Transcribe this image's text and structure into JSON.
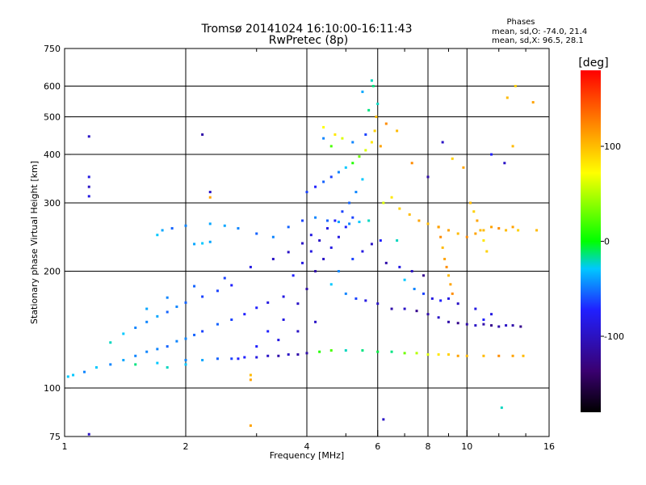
{
  "chart_data": {
    "type": "scatter",
    "title": "Tromsø 20141024 16:10:00-16:11:43",
    "subtitle": "RwPretec (8p)",
    "xlabel": "Frequency [MHz]",
    "ylabel": "Stationary phase Virtual Height [km]",
    "x_scale": "log",
    "y_scale": "log",
    "xlim": [
      1,
      16
    ],
    "ylim": [
      75,
      750
    ],
    "x_ticks": [
      1,
      2,
      4,
      6,
      8,
      10,
      16
    ],
    "x_tick_labels": [
      "1",
      "2",
      "4",
      "6",
      "8",
      "10",
      "16"
    ],
    "y_ticks": [
      75,
      100,
      200,
      300,
      400,
      500,
      600,
      750
    ],
    "y_tick_labels": [
      "75",
      "100",
      "200",
      "300",
      "400",
      "500",
      "600",
      "750"
    ],
    "grid": true,
    "stats": {
      "title": "Phases",
      "o_line": "mean, sd,O: -74.0, 21.4",
      "x_line": "mean, sd,X:  96.5, 28.1"
    },
    "colorbar": {
      "label": "[deg]",
      "range": [
        -180,
        180
      ],
      "ticks": [
        100,
        0,
        -100
      ],
      "tick_labels": [
        "100",
        "0",
        "-100"
      ],
      "colors": [
        "#000000",
        "#3a0070",
        "#2020ff",
        "#00c8ff",
        "#00ff00",
        "#ffff00",
        "#ff8000",
        "#ff0000"
      ]
    },
    "series": [
      {
        "points": [
          [
            1.02,
            107,
            -40
          ],
          [
            1.05,
            108,
            -40
          ],
          [
            1.12,
            110,
            -60
          ],
          [
            1.2,
            113,
            -40
          ],
          [
            1.3,
            115,
            -60
          ],
          [
            1.4,
            118,
            -50
          ],
          [
            1.5,
            121,
            -60
          ],
          [
            1.6,
            124,
            -60
          ],
          [
            1.7,
            126,
            -60
          ],
          [
            1.8,
            128,
            -70
          ],
          [
            1.9,
            132,
            -60
          ],
          [
            2.0,
            134,
            -60
          ],
          [
            2.1,
            137,
            -70
          ],
          [
            2.2,
            140,
            -80
          ],
          [
            2.4,
            146,
            -70
          ],
          [
            2.6,
            150,
            -80
          ],
          [
            2.8,
            155,
            -90
          ],
          [
            3.0,
            161,
            -90
          ],
          [
            3.2,
            166,
            -100
          ],
          [
            3.5,
            172,
            -100
          ],
          [
            1.4,
            138,
            -40
          ],
          [
            1.5,
            143,
            -60
          ],
          [
            1.6,
            148,
            -60
          ],
          [
            1.7,
            153,
            -50
          ],
          [
            1.8,
            157,
            -70
          ],
          [
            1.9,
            162,
            -60
          ],
          [
            2.0,
            166,
            -70
          ],
          [
            2.2,
            172,
            -80
          ],
          [
            2.4,
            178,
            -80
          ],
          [
            2.6,
            184,
            -90
          ],
          [
            1.3,
            131,
            -30
          ],
          [
            1.6,
            160,
            -50
          ],
          [
            1.8,
            171,
            -60
          ],
          [
            2.1,
            183,
            -70
          ],
          [
            2.5,
            192,
            -80
          ],
          [
            2.9,
            205,
            -100
          ],
          [
            3.3,
            215,
            -110
          ],
          [
            3.6,
            224,
            -110
          ],
          [
            3.9,
            236,
            -110
          ],
          [
            4.1,
            248,
            -100
          ],
          [
            2.8,
            120,
            -90
          ],
          [
            3.0,
            120,
            -100
          ],
          [
            3.2,
            121,
            -110
          ],
          [
            3.4,
            121,
            -120
          ],
          [
            3.6,
            122,
            -110
          ],
          [
            3.8,
            122,
            -120
          ],
          [
            4.0,
            123,
            -120
          ],
          [
            4.3,
            124,
            10
          ],
          [
            4.6,
            125,
            20
          ],
          [
            5.0,
            125,
            -30
          ],
          [
            5.5,
            125,
            -20
          ],
          [
            6.0,
            124,
            -10
          ],
          [
            6.5,
            124,
            -20
          ],
          [
            7.0,
            123,
            30
          ],
          [
            7.5,
            123,
            50
          ],
          [
            8.0,
            122,
            60
          ],
          [
            8.5,
            122,
            80
          ],
          [
            9.0,
            122,
            90
          ],
          [
            9.5,
            121,
            110
          ],
          [
            10.0,
            121,
            100
          ],
          [
            11.0,
            121,
            100
          ],
          [
            12.0,
            121,
            120
          ],
          [
            13.0,
            121,
            110
          ],
          [
            13.8,
            121,
            100
          ],
          [
            2.0,
            118,
            -60
          ],
          [
            2.2,
            118,
            -50
          ],
          [
            2.4,
            119,
            -70
          ],
          [
            2.6,
            119,
            -80
          ],
          [
            2.7,
            119,
            -90
          ],
          [
            1.7,
            116,
            -40
          ],
          [
            3.2,
            140,
            -90
          ],
          [
            3.5,
            150,
            -100
          ],
          [
            3.8,
            165,
            -110
          ],
          [
            4.0,
            180,
            -120
          ],
          [
            4.2,
            200,
            -120
          ],
          [
            4.4,
            215,
            -110
          ],
          [
            4.6,
            230,
            -100
          ],
          [
            4.8,
            245,
            -100
          ],
          [
            5.0,
            260,
            -90
          ],
          [
            5.2,
            275,
            -80
          ],
          [
            3.7,
            195,
            -90
          ],
          [
            3.9,
            210,
            -100
          ],
          [
            4.1,
            225,
            -100
          ],
          [
            4.3,
            240,
            -110
          ],
          [
            4.5,
            258,
            -100
          ],
          [
            4.7,
            270,
            -90
          ],
          [
            4.9,
            285,
            -80
          ],
          [
            5.1,
            300,
            -70
          ],
          [
            5.3,
            320,
            -60
          ],
          [
            5.5,
            345,
            -40
          ],
          [
            3.6,
            260,
            -70
          ],
          [
            3.9,
            270,
            -80
          ],
          [
            4.2,
            275,
            -60
          ],
          [
            4.5,
            270,
            -70
          ],
          [
            4.8,
            268,
            -50
          ],
          [
            5.1,
            265,
            -60
          ],
          [
            5.4,
            268,
            -40
          ],
          [
            5.7,
            270,
            -30
          ],
          [
            3.3,
            245,
            -60
          ],
          [
            3.0,
            250,
            -70
          ],
          [
            2.7,
            258,
            -60
          ],
          [
            2.5,
            262,
            -50
          ],
          [
            2.3,
            265,
            -50
          ],
          [
            2.0,
            262,
            -60
          ],
          [
            1.85,
            258,
            -70
          ],
          [
            1.75,
            255,
            -50
          ],
          [
            1.7,
            248,
            -40
          ],
          [
            2.1,
            235,
            -50
          ],
          [
            2.2,
            236,
            -40
          ],
          [
            2.3,
            238,
            -50
          ],
          [
            4.0,
            320,
            -80
          ],
          [
            4.2,
            330,
            -90
          ],
          [
            4.4,
            340,
            -70
          ],
          [
            4.6,
            350,
            -80
          ],
          [
            4.8,
            360,
            -60
          ],
          [
            5.0,
            370,
            -40
          ],
          [
            5.2,
            380,
            10
          ],
          [
            5.4,
            395,
            30
          ],
          [
            5.6,
            410,
            60
          ],
          [
            5.8,
            430,
            80
          ],
          [
            5.9,
            460,
            90
          ],
          [
            5.95,
            500,
            100
          ],
          [
            6.0,
            540,
            -30
          ],
          [
            5.85,
            600,
            -20
          ],
          [
            5.8,
            620,
            -30
          ],
          [
            5.5,
            580,
            -50
          ],
          [
            5.7,
            520,
            -20
          ],
          [
            4.9,
            440,
            60
          ],
          [
            4.6,
            420,
            20
          ],
          [
            4.4,
            440,
            -60
          ],
          [
            6.2,
            300,
            60
          ],
          [
            6.5,
            310,
            80
          ],
          [
            6.8,
            290,
            90
          ],
          [
            7.2,
            280,
            100
          ],
          [
            7.6,
            270,
            110
          ],
          [
            8.0,
            265,
            100
          ],
          [
            8.5,
            260,
            120
          ],
          [
            9.0,
            255,
            110
          ],
          [
            9.5,
            250,
            100
          ],
          [
            10.0,
            245,
            120
          ],
          [
            10.5,
            250,
            110
          ],
          [
            11.0,
            255,
            100
          ],
          [
            11.5,
            260,
            110
          ],
          [
            12.0,
            258,
            120
          ],
          [
            12.5,
            255,
            100
          ],
          [
            13.0,
            260,
            110
          ],
          [
            6.3,
            210,
            -120
          ],
          [
            6.8,
            205,
            -100
          ],
          [
            7.3,
            200,
            -110
          ],
          [
            7.8,
            195,
            -130
          ],
          [
            6.5,
            160,
            -120
          ],
          [
            7.0,
            160,
            -110
          ],
          [
            7.5,
            158,
            -130
          ],
          [
            8.0,
            155,
            -120
          ],
          [
            8.5,
            152,
            -110
          ],
          [
            9.0,
            148,
            -120
          ],
          [
            9.5,
            147,
            -130
          ],
          [
            10.0,
            146,
            -120
          ],
          [
            10.5,
            145,
            -110
          ],
          [
            11.0,
            146,
            -120
          ],
          [
            11.5,
            145,
            -130
          ],
          [
            12.0,
            144,
            -120
          ],
          [
            12.5,
            145,
            -110
          ],
          [
            13.0,
            145,
            -120
          ],
          [
            13.6,
            144,
            -130
          ],
          [
            9.0,
            170,
            -100
          ],
          [
            9.5,
            165,
            -110
          ],
          [
            10.5,
            160,
            -100
          ],
          [
            11.0,
            150,
            -90
          ],
          [
            11.5,
            155,
            -100
          ],
          [
            8.8,
            215,
            110
          ],
          [
            8.9,
            205,
            120
          ],
          [
            9.0,
            195,
            100
          ],
          [
            9.1,
            185,
            110
          ],
          [
            9.2,
            175,
            120
          ],
          [
            8.7,
            230,
            100
          ],
          [
            8.6,
            245,
            120
          ],
          [
            8.5,
            260,
            110
          ],
          [
            10.2,
            300,
            100
          ],
          [
            10.4,
            285,
            90
          ],
          [
            10.6,
            270,
            110
          ],
          [
            10.8,
            255,
            100
          ],
          [
            11.0,
            240,
            80
          ],
          [
            11.2,
            225,
            90
          ],
          [
            7.0,
            190,
            -40
          ],
          [
            7.4,
            180,
            -60
          ],
          [
            7.8,
            175,
            -80
          ],
          [
            8.2,
            170,
            -100
          ],
          [
            8.6,
            168,
            -90
          ],
          [
            6.7,
            240,
            -30
          ],
          [
            5.0,
            175,
            -60
          ],
          [
            5.3,
            170,
            -80
          ],
          [
            5.6,
            168,
            -100
          ],
          [
            6.0,
            165,
            -110
          ],
          [
            4.6,
            185,
            -40
          ],
          [
            4.8,
            200,
            -60
          ],
          [
            5.2,
            215,
            -80
          ],
          [
            5.5,
            225,
            -100
          ],
          [
            5.8,
            235,
            -110
          ],
          [
            6.1,
            240,
            -90
          ],
          [
            4.4,
            470,
            70
          ],
          [
            4.7,
            450,
            80
          ],
          [
            5.2,
            430,
            -60
          ],
          [
            5.6,
            450,
            -80
          ],
          [
            6.3,
            480,
            120
          ],
          [
            6.1,
            420,
            110
          ],
          [
            6.7,
            460,
            100
          ],
          [
            7.3,
            380,
            120
          ],
          [
            8.0,
            350,
            -120
          ],
          [
            8.7,
            430,
            -110
          ],
          [
            9.2,
            390,
            90
          ],
          [
            9.8,
            370,
            110
          ],
          [
            11.5,
            400,
            -90
          ],
          [
            12.4,
            380,
            -110
          ],
          [
            13.0,
            420,
            100
          ],
          [
            14.6,
            545,
            110
          ],
          [
            13.2,
            600,
            90
          ],
          [
            12.6,
            560,
            100
          ],
          [
            14.9,
            255,
            100
          ],
          [
            13.4,
            255,
            90
          ],
          [
            1.15,
            445,
            -110
          ],
          [
            1.15,
            350,
            -100
          ],
          [
            1.15,
            330,
            -110
          ],
          [
            1.15,
            312,
            -100
          ],
          [
            2.2,
            450,
            -120
          ],
          [
            2.3,
            320,
            -110
          ],
          [
            2.3,
            310,
            110
          ],
          [
            2.9,
            108,
            100
          ],
          [
            2.9,
            80,
            110
          ],
          [
            1.15,
            76,
            -110
          ],
          [
            12.2,
            89,
            -30
          ],
          [
            6.2,
            83,
            -110
          ],
          [
            2.9,
            105,
            110
          ],
          [
            1.5,
            115,
            -20
          ],
          [
            1.8,
            113,
            -30
          ],
          [
            2.0,
            115,
            -40
          ],
          [
            3.0,
            128,
            -90
          ],
          [
            3.4,
            133,
            -100
          ],
          [
            3.8,
            140,
            -110
          ],
          [
            4.2,
            148,
            -110
          ]
        ]
      }
    ]
  }
}
